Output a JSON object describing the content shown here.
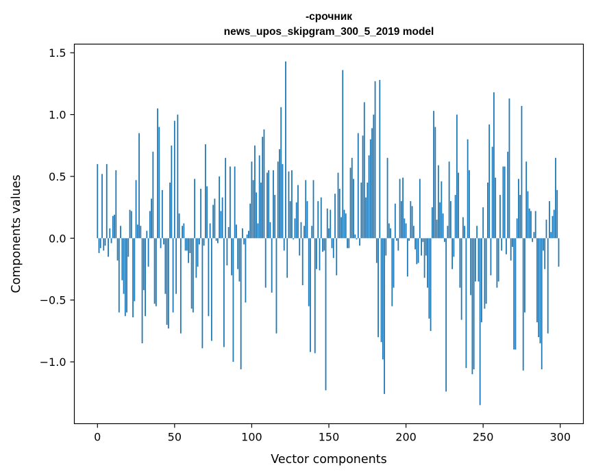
{
  "chart_data": {
    "type": "bar",
    "title_line1": "-срочник",
    "title_line2": "news_upos_skipgram_300_5_2019 model",
    "xlabel": "Vector components",
    "ylabel": "Components values",
    "xlim": [
      -15,
      315
    ],
    "ylim": [
      -1.5,
      1.57
    ],
    "xticks": [
      0,
      50,
      100,
      150,
      200,
      250,
      300
    ],
    "xtick_labels": [
      "0",
      "50",
      "100",
      "150",
      "200",
      "250",
      "300"
    ],
    "yticks": [
      -1.0,
      -0.5,
      0.0,
      0.5,
      1.0,
      1.5
    ],
    "ytick_labels": [
      "−1.0",
      "−0.5",
      "0.0",
      "0.5",
      "1.0",
      "1.5"
    ],
    "bar_color": "#1f77b4",
    "grid": false,
    "values": [
      0.6,
      -0.12,
      -0.08,
      0.52,
      -0.1,
      -0.06,
      0.6,
      -0.15,
      0.08,
      -0.04,
      0.18,
      0.19,
      0.55,
      -0.18,
      -0.6,
      0.1,
      -0.34,
      -0.45,
      -0.63,
      -0.6,
      -0.15,
      0.23,
      0.22,
      -0.64,
      -0.51,
      0.47,
      0.11,
      0.85,
      0.1,
      -0.85,
      -0.42,
      -0.63,
      0.06,
      -0.23,
      0.22,
      0.32,
      0.7,
      -0.53,
      -0.55,
      1.05,
      0.9,
      -0.08,
      0.39,
      -0.05,
      -0.45,
      -0.7,
      -0.73,
      0.45,
      0.75,
      -0.6,
      0.95,
      -0.45,
      1.0,
      0.2,
      -0.77,
      0.1,
      0.12,
      -0.1,
      -0.1,
      -0.2,
      -0.12,
      -0.57,
      -0.6,
      0.48,
      -0.32,
      -0.23,
      -0.05,
      0.4,
      -0.89,
      -0.06,
      0.76,
      0.42,
      -0.63,
      0.12,
      -0.83,
      0.27,
      0.32,
      -0.02,
      -0.04,
      0.5,
      0.22,
      0.33,
      -0.88,
      0.65,
      -0.22,
      0.09,
      0.58,
      -0.3,
      -1.0,
      0.58,
      0.11,
      -0.25,
      -0.35,
      -1.06,
      0.08,
      -0.05,
      -0.52,
      0.03,
      0.06,
      0.28,
      0.62,
      0.47,
      0.75,
      0.37,
      0.12,
      0.67,
      0.45,
      0.82,
      0.88,
      -0.4,
      0.53,
      0.55,
      0.13,
      -0.44,
      0.55,
      0.35,
      -0.77,
      0.62,
      0.72,
      1.06,
      0.6,
      -0.1,
      1.43,
      -0.32,
      0.54,
      0.3,
      0.55,
      -0.01,
      0.16,
      0.29,
      0.43,
      -0.14,
      0.13,
      -0.38,
      0.1,
      0.47,
      0.3,
      -0.55,
      -0.92,
      0.1,
      0.47,
      -0.93,
      -0.25,
      0.3,
      -0.26,
      0.33,
      -0.11,
      -0.1,
      -1.23,
      0.24,
      0.08,
      0.23,
      -0.08,
      -0.16,
      0.36,
      -0.3,
      0.53,
      0.4,
      0.17,
      1.36,
      0.23,
      0.2,
      -0.08,
      -0.08,
      0.57,
      0.65,
      0.48,
      0.03,
      -0.01,
      0.85,
      -0.06,
      0.45,
      0.83,
      1.1,
      0.33,
      0.45,
      0.67,
      0.8,
      0.89,
      1.0,
      1.27,
      -0.2,
      -0.8,
      1.28,
      -0.84,
      -0.98,
      -1.26,
      -0.14,
      0.65,
      0.12,
      0.08,
      -0.55,
      -0.4,
      0.28,
      -0.02,
      -0.1,
      0.48,
      0.3,
      0.49,
      0.16,
      0.12,
      -0.31,
      -0.02,
      0.3,
      0.26,
      0.1,
      -0.09,
      -0.21,
      -0.2,
      0.48,
      -0.14,
      -0.03,
      -0.32,
      -0.14,
      -0.4,
      -0.65,
      -0.75,
      0.25,
      1.03,
      0.9,
      0.15,
      0.59,
      0.29,
      0.46,
      0.2,
      -0.03,
      -1.24,
      0.1,
      0.62,
      0.3,
      -0.25,
      -0.15,
      0.35,
      1.0,
      0.53,
      -0.4,
      -0.66,
      0.17,
      0.1,
      -1.05,
      0.8,
      0.55,
      -0.46,
      -1.1,
      -1.06,
      -0.35,
      0.1,
      -0.35,
      -1.35,
      -0.68,
      0.25,
      -0.57,
      -0.53,
      0.45,
      0.92,
      -0.3,
      0.74,
      1.18,
      0.49,
      -0.4,
      -0.35,
      0.35,
      -0.1,
      0.58,
      0.58,
      -0.13,
      0.7,
      1.13,
      -0.18,
      -0.07,
      -0.9,
      -0.9,
      0.16,
      0.48,
      0.35,
      1.07,
      -1.07,
      -0.6,
      0.62,
      0.38,
      0.24,
      0.22,
      -0.03,
      0.05,
      0.22,
      -0.68,
      -0.8,
      -0.85,
      -1.06,
      -0.1,
      -0.25,
      0.15,
      -0.77,
      0.3,
      0.05,
      0.18,
      0.23,
      0.65,
      0.39,
      -0.23
    ]
  }
}
